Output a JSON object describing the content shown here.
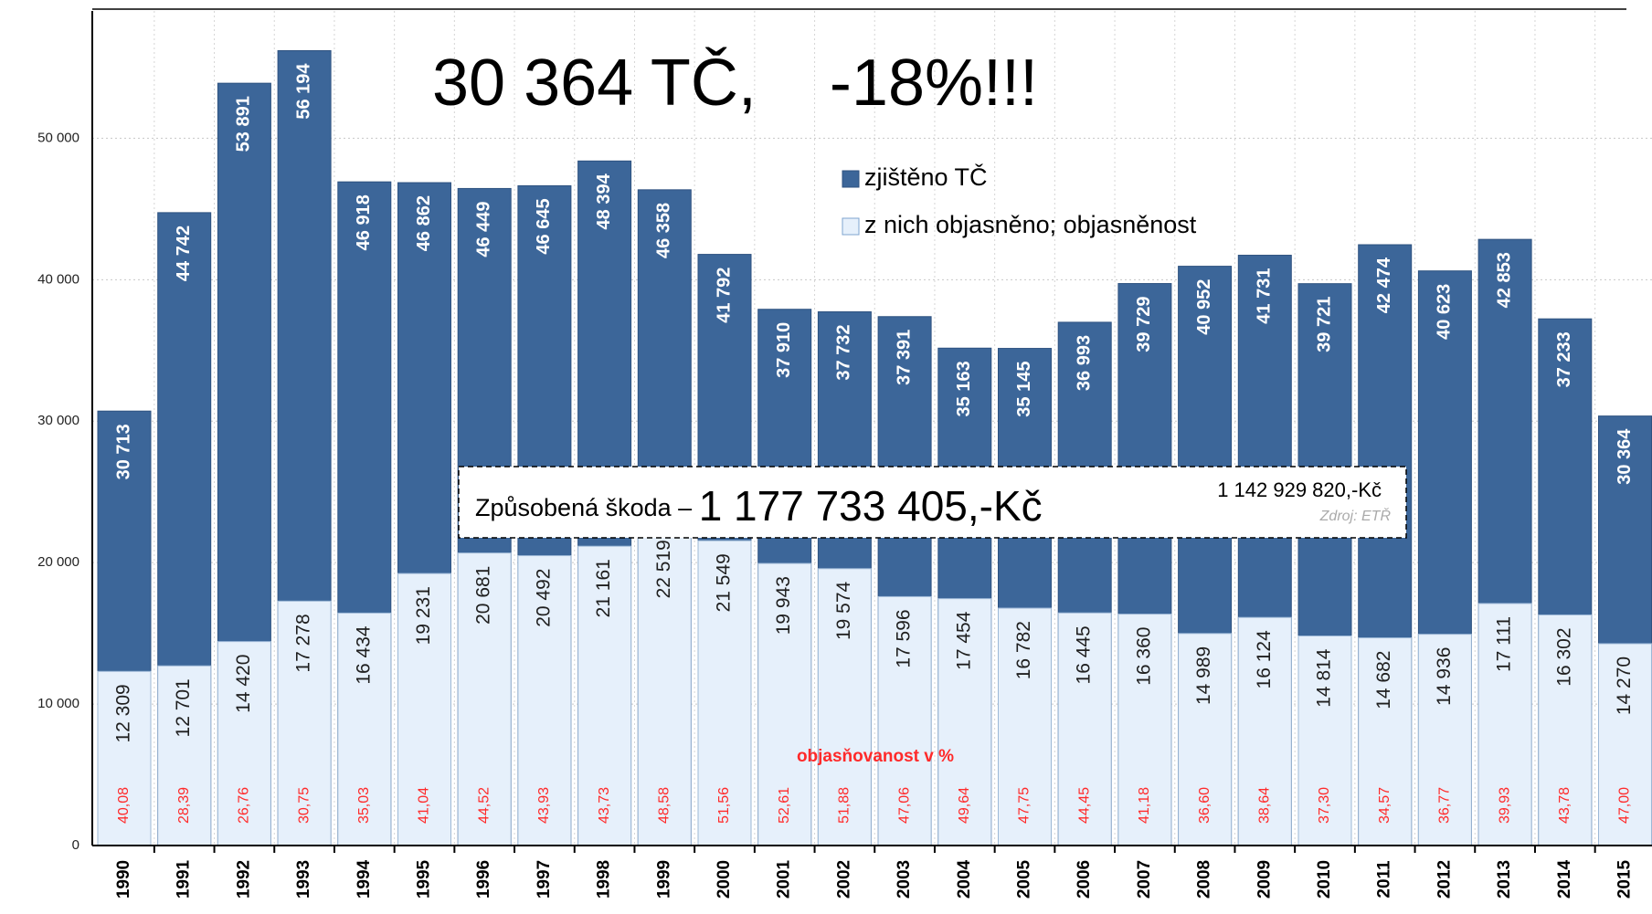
{
  "chart_data": {
    "type": "bar",
    "title": "30 364 TČ,    -18%!!!",
    "categories": [
      "1990",
      "1991",
      "1992",
      "1993",
      "1994",
      "1995",
      "1996",
      "1997",
      "1998",
      "1999",
      "2000",
      "2001",
      "2002",
      "2003",
      "2004",
      "2005",
      "2006",
      "2007",
      "2008",
      "2009",
      "2010",
      "2011",
      "2012",
      "2013",
      "2014",
      "2015"
    ],
    "series": [
      {
        "name": "zjištěno TČ",
        "color": "#3c6699",
        "values": [
          30713,
          44742,
          53891,
          56194,
          46918,
          46862,
          46449,
          46645,
          48394,
          46358,
          41792,
          37910,
          37732,
          37391,
          35163,
          35145,
          36993,
          39729,
          40952,
          41731,
          39721,
          42474,
          40623,
          42853,
          37233,
          30364
        ],
        "value_labels": [
          "30 713",
          "44 742",
          "53 891",
          "56 194",
          "46 918",
          "46 862",
          "46 449",
          "46 645",
          "48 394",
          "46 358",
          "41 792",
          "37 910",
          "37 732",
          "37 391",
          "35 163",
          "35 145",
          "36 993",
          "39 729",
          "40 952",
          "41 731",
          "39 721",
          "42 474",
          "40 623",
          "42 853",
          "37 233",
          "30 364"
        ]
      },
      {
        "name": "z nich objasněno; objasněnost",
        "color": "#e6f0fb",
        "values": [
          12309,
          12701,
          14420,
          17278,
          16434,
          19231,
          20681,
          20492,
          21161,
          22519,
          21549,
          19943,
          19574,
          17596,
          17454,
          16782,
          16445,
          16360,
          14989,
          16124,
          14814,
          14682,
          14936,
          17111,
          16302,
          14270
        ],
        "value_labels": [
          "12 309",
          "12 701",
          "14 420",
          "17 278",
          "16 434",
          "19 231",
          "20 681",
          "20 492",
          "21 161",
          "22 519",
          "21 549",
          "19 943",
          "19 574",
          "17 596",
          "17 454",
          "16 782",
          "16 445",
          "16 360",
          "14 989",
          "16 124",
          "14 814",
          "14 682",
          "14 936",
          "17 111",
          "16 302",
          "14 270"
        ]
      }
    ],
    "rate": {
      "label": "objasňovanost v %",
      "color": "#ff2a2a",
      "values": [
        40.08,
        28.39,
        26.76,
        30.75,
        35.03,
        41.04,
        44.52,
        43.93,
        43.73,
        48.58,
        51.56,
        52.61,
        51.88,
        47.06,
        49.64,
        47.75,
        44.45,
        41.18,
        36.6,
        38.64,
        37.3,
        34.57,
        36.77,
        39.93,
        43.78,
        47.0
      ],
      "value_labels": [
        "40,08",
        "28,39",
        "26,76",
        "30,75",
        "35,03",
        "41,04",
        "44,52",
        "43,93",
        "43,73",
        "48,58",
        "51,56",
        "52,61",
        "51,88",
        "47,06",
        "49,64",
        "47,75",
        "44,45",
        "41,18",
        "36,60",
        "38,64",
        "37,30",
        "34,57",
        "36,77",
        "39,93",
        "43,78",
        "47,00"
      ]
    },
    "annotation": {
      "lead": "Způsobená škoda – ",
      "amount": "1 177 733 405,-Kč",
      "previous": "1 142 929 820,-Kč",
      "source": "Zdroj: ETŘ"
    },
    "ylim": [
      0,
      59000
    ],
    "yticks": [
      0,
      {
        "value": 10000,
        "label": "10 000"
      },
      {
        "value": 20000,
        "label": "20 000"
      },
      {
        "value": 30000,
        "label": "30 000"
      },
      {
        "value": 40000,
        "label": "40 000"
      },
      {
        "value": 50000,
        "label": "50 000"
      }
    ],
    "grid": true
  }
}
